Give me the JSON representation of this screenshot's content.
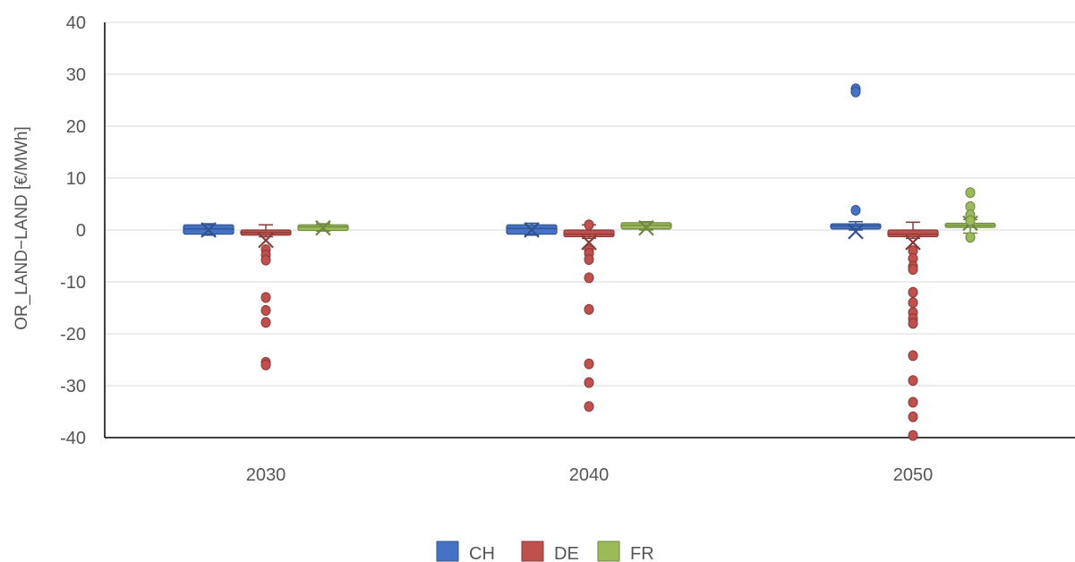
{
  "chart_data": {
    "type": "box",
    "title": "",
    "xlabel": "",
    "ylabel": "OR_LAND−LAND [€/MWh]",
    "categories": [
      "2030",
      "2040",
      "2050"
    ],
    "ylim": [
      -40,
      40
    ],
    "yticks": [
      40,
      30,
      20,
      10,
      0,
      -10,
      -20,
      -30,
      -40
    ],
    "grid": true,
    "legend_position": "bottom",
    "series": [
      {
        "name": "CH",
        "color": "#4472C4",
        "boxes": [
          {
            "q1": -0.8,
            "median": 0.2,
            "q3": 1.0,
            "whisker_low": -1.0,
            "whisker_high": 1.2,
            "mean": 0.0,
            "outliers": []
          },
          {
            "q1": -0.8,
            "median": 0.3,
            "q3": 1.0,
            "whisker_low": -1.0,
            "whisker_high": 1.3,
            "mean": 0.0,
            "outliers": []
          },
          {
            "q1": 0.2,
            "median": 0.8,
            "q3": 1.2,
            "whisker_low": 0.0,
            "whisker_high": 1.6,
            "mean": -0.3,
            "outliers": [
              27.2,
              26.6,
              3.8
            ]
          }
        ]
      },
      {
        "name": "DE",
        "color": "#C0504D",
        "boxes": [
          {
            "q1": -1.0,
            "median": -0.5,
            "q3": 0.0,
            "whisker_low": -1.3,
            "whisker_high": 1.0,
            "mean": -2.0,
            "outliers": [
              -3.8,
              -4.8,
              -5.8,
              -13.0,
              -15.5,
              -17.8,
              -25.5,
              -26.0
            ]
          },
          {
            "q1": -1.3,
            "median": -0.8,
            "q3": 0.0,
            "whisker_low": -1.6,
            "whisker_high": 1.0,
            "mean": -2.4,
            "outliers": [
              1.0,
              -3.8,
              -4.5,
              -5.7,
              -9.2,
              -15.3,
              -25.8,
              -29.4,
              -34.0
            ]
          },
          {
            "q1": -1.3,
            "median": -0.8,
            "q3": 0.0,
            "whisker_low": -1.6,
            "whisker_high": 1.5,
            "mean": -2.4,
            "outliers": [
              -4.0,
              -5.5,
              -7.0,
              -7.6,
              -12.0,
              -14.0,
              -15.9,
              -17.1,
              -18.0,
              -24.2,
              -29.0,
              -33.2,
              -36.0,
              -39.6
            ]
          }
        ]
      },
      {
        "name": "FR",
        "color": "#9BBB59",
        "boxes": [
          {
            "q1": -0.1,
            "median": 0.6,
            "q3": 1.0,
            "whisker_low": -0.2,
            "whisker_high": 1.2,
            "mean": 0.4,
            "outliers": []
          },
          {
            "q1": 0.2,
            "median": 0.9,
            "q3": 1.4,
            "whisker_low": 0.0,
            "whisker_high": 1.6,
            "mean": 0.4,
            "outliers": []
          },
          {
            "q1": 0.5,
            "median": 0.9,
            "q3": 1.3,
            "whisker_low": -0.6,
            "whisker_high": 2.0,
            "mean": 1.3,
            "outliers": [
              7.2,
              4.5,
              2.9,
              1.8,
              -1.4
            ]
          }
        ]
      }
    ]
  }
}
